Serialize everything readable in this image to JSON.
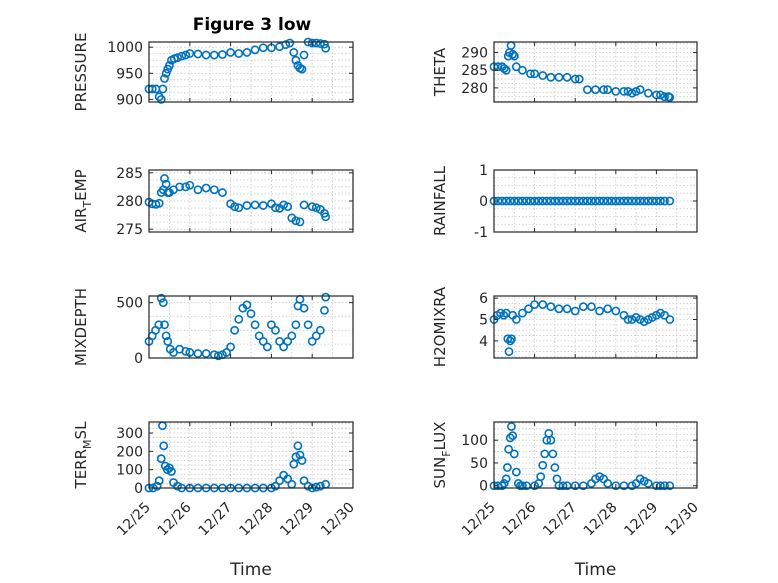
{
  "figure_title": "Figure 3 low",
  "chart_data": [
    {
      "type": "scatter",
      "ylabel": "PRESSURE",
      "xlabel": "",
      "ylim": [
        895,
        1010
      ],
      "yticks": [
        900,
        950,
        1000
      ],
      "xlim": [
        0,
        5
      ],
      "xticks": [
        0,
        1,
        2,
        3,
        4,
        5
      ],
      "xticklabels": [
        "12/25",
        "12/26",
        "12/27",
        "12/28",
        "12/29",
        "12/30"
      ],
      "grid": true,
      "color": "#0072BD",
      "x": [
        0.0,
        0.08,
        0.17,
        0.25,
        0.3,
        0.34,
        0.38,
        0.42,
        0.46,
        0.5,
        0.55,
        0.62,
        0.7,
        0.8,
        0.9,
        1.0,
        1.2,
        1.4,
        1.6,
        1.8,
        2.0,
        2.2,
        2.4,
        2.6,
        2.8,
        3.0,
        3.2,
        3.35,
        3.45,
        3.55,
        3.6,
        3.65,
        3.7,
        3.75,
        3.8,
        3.9,
        4.0,
        4.1,
        4.2,
        4.3,
        4.33
      ],
      "y": [
        920,
        920,
        920,
        905,
        900,
        920,
        940,
        950,
        958,
        965,
        975,
        978,
        980,
        983,
        985,
        988,
        987,
        985,
        985,
        986,
        990,
        988,
        990,
        995,
        999,
        999,
        1001,
        1005,
        1008,
        990,
        975,
        965,
        960,
        958,
        985,
        1010,
        1008,
        1008,
        1007,
        1006,
        998
      ]
    },
    {
      "type": "scatter",
      "ylabel": "THETA",
      "xlabel": "",
      "ylim": [
        276,
        293
      ],
      "yticks": [
        280,
        285,
        290
      ],
      "xlim": [
        0,
        5
      ],
      "xticks": [
        0,
        1,
        2,
        3,
        4,
        5
      ],
      "xticklabels": [
        "12/25",
        "12/26",
        "12/27",
        "12/28",
        "12/29",
        "12/30"
      ],
      "grid": true,
      "color": "#0072BD",
      "x": [
        0.0,
        0.1,
        0.2,
        0.25,
        0.3,
        0.35,
        0.38,
        0.42,
        0.46,
        0.5,
        0.55,
        0.7,
        0.9,
        1.0,
        1.2,
        1.4,
        1.6,
        1.8,
        2.0,
        2.1,
        2.3,
        2.5,
        2.7,
        2.8,
        3.0,
        3.2,
        3.3,
        3.4,
        3.5,
        3.6,
        3.8,
        4.0,
        4.1,
        4.2,
        4.3,
        4.33
      ],
      "y": [
        286,
        286,
        286,
        285.5,
        285,
        289,
        290,
        292,
        289.5,
        289,
        286,
        285,
        284,
        284,
        283.5,
        283,
        283,
        283,
        282.5,
        282.5,
        279.5,
        279.5,
        279.5,
        279.5,
        279,
        279,
        279,
        278.5,
        279,
        279.5,
        278.5,
        278,
        278,
        277.5,
        277.5,
        277.3
      ]
    },
    {
      "type": "scatter",
      "ylabel": "AIR_TEMP",
      "xlabel": "",
      "ylim": [
        274.5,
        285.5
      ],
      "yticks": [
        275,
        280,
        285
      ],
      "xlim": [
        0,
        5
      ],
      "xticks": [
        0,
        1,
        2,
        3,
        4,
        5
      ],
      "xticklabels": [
        "12/25",
        "12/26",
        "12/27",
        "12/28",
        "12/29",
        "12/30"
      ],
      "grid": true,
      "color": "#0072BD",
      "x": [
        0.0,
        0.08,
        0.17,
        0.25,
        0.3,
        0.35,
        0.38,
        0.42,
        0.46,
        0.5,
        0.6,
        0.75,
        0.9,
        1.0,
        1.2,
        1.4,
        1.6,
        1.8,
        2.0,
        2.1,
        2.2,
        2.4,
        2.6,
        2.8,
        3.0,
        3.1,
        3.2,
        3.3,
        3.4,
        3.5,
        3.6,
        3.7,
        3.8,
        4.0,
        4.1,
        4.2,
        4.3,
        4.33
      ],
      "y": [
        279.8,
        279.5,
        279.4,
        279.6,
        281.5,
        282,
        284,
        283,
        281.5,
        281.5,
        282,
        282.5,
        282.5,
        282.8,
        282,
        282.3,
        282,
        281.5,
        279.5,
        279,
        278.8,
        279.2,
        279.3,
        279.2,
        279.5,
        278.8,
        278.7,
        279.3,
        279,
        277,
        276.5,
        276.3,
        279.3,
        279,
        278.8,
        278.5,
        277.8,
        277.2
      ]
    },
    {
      "type": "scatter",
      "ylabel": "RAINFALL",
      "xlabel": "",
      "ylim": [
        -1,
        1
      ],
      "yticks": [
        -1,
        0,
        1
      ],
      "xlim": [
        0,
        5
      ],
      "xticks": [
        0,
        1,
        2,
        3,
        4,
        5
      ],
      "xticklabels": [
        "12/25",
        "12/26",
        "12/27",
        "12/28",
        "12/29",
        "12/30"
      ],
      "grid": true,
      "color": "#0072BD",
      "x": [
        0.0,
        0.1,
        0.2,
        0.3,
        0.4,
        0.5,
        0.6,
        0.7,
        0.8,
        0.9,
        1.0,
        1.1,
        1.2,
        1.3,
        1.4,
        1.5,
        1.6,
        1.7,
        1.8,
        1.9,
        2.0,
        2.1,
        2.2,
        2.3,
        2.4,
        2.5,
        2.6,
        2.7,
        2.8,
        2.9,
        3.0,
        3.1,
        3.2,
        3.3,
        3.4,
        3.5,
        3.6,
        3.7,
        3.8,
        3.9,
        4.0,
        4.1,
        4.2,
        4.33
      ],
      "y": [
        0,
        0,
        0,
        0,
        0,
        0,
        0,
        0,
        0,
        0,
        0,
        0,
        0,
        0,
        0,
        0,
        0,
        0,
        0,
        0,
        0,
        0,
        0,
        0,
        0,
        0,
        0,
        0,
        0,
        0,
        0,
        0,
        0,
        0,
        0,
        0,
        0,
        0,
        0,
        0,
        0,
        0,
        0,
        0
      ]
    },
    {
      "type": "scatter",
      "ylabel": "MIXDEPTH",
      "xlabel": "",
      "ylim": [
        0,
        560
      ],
      "yticks": [
        0,
        500
      ],
      "xlim": [
        0,
        5
      ],
      "xticks": [
        0,
        1,
        2,
        3,
        4,
        5
      ],
      "xticklabels": [
        "12/25",
        "12/26",
        "12/27",
        "12/28",
        "12/29",
        "12/30"
      ],
      "grid": true,
      "color": "#0072BD",
      "x": [
        0.0,
        0.08,
        0.16,
        0.24,
        0.3,
        0.35,
        0.38,
        0.42,
        0.46,
        0.52,
        0.6,
        0.75,
        0.9,
        1.0,
        1.2,
        1.4,
        1.6,
        1.7,
        1.8,
        1.9,
        2.0,
        2.1,
        2.2,
        2.3,
        2.4,
        2.5,
        2.6,
        2.7,
        2.8,
        2.9,
        3.0,
        3.1,
        3.2,
        3.3,
        3.4,
        3.5,
        3.6,
        3.65,
        3.7,
        3.8,
        3.9,
        4.0,
        4.1,
        4.2,
        4.3,
        4.33
      ],
      "y": [
        150,
        200,
        250,
        300,
        540,
        500,
        300,
        200,
        150,
        80,
        50,
        80,
        60,
        50,
        40,
        40,
        30,
        20,
        30,
        50,
        100,
        250,
        350,
        450,
        480,
        400,
        300,
        200,
        150,
        100,
        300,
        250,
        150,
        100,
        150,
        200,
        300,
        470,
        530,
        450,
        300,
        150,
        200,
        250,
        430,
        550
      ]
    },
    {
      "type": "scatter",
      "ylabel": "H2OMIXRA",
      "xlabel": "",
      "ylim": [
        3.2,
        6.1
      ],
      "yticks": [
        4,
        5,
        6
      ],
      "xlim": [
        0,
        5
      ],
      "xticks": [
        0,
        1,
        2,
        3,
        4,
        5
      ],
      "xticklabels": [
        "12/25",
        "12/26",
        "12/27",
        "12/28",
        "12/29",
        "12/30"
      ],
      "grid": true,
      "color": "#0072BD",
      "x": [
        0.0,
        0.08,
        0.16,
        0.24,
        0.3,
        0.34,
        0.37,
        0.4,
        0.43,
        0.46,
        0.55,
        0.7,
        0.85,
        1.0,
        1.2,
        1.4,
        1.6,
        1.8,
        2.0,
        2.2,
        2.4,
        2.6,
        2.8,
        3.0,
        3.2,
        3.3,
        3.4,
        3.5,
        3.6,
        3.7,
        3.8,
        3.9,
        4.0,
        4.1,
        4.2,
        4.33
      ],
      "y": [
        5.0,
        5.2,
        5.3,
        5.2,
        5.3,
        4.1,
        3.5,
        4.0,
        4.1,
        5.2,
        5.0,
        5.3,
        5.5,
        5.7,
        5.7,
        5.6,
        5.5,
        5.5,
        5.4,
        5.6,
        5.6,
        5.4,
        5.5,
        5.4,
        5.2,
        5.0,
        5.0,
        5.1,
        5.0,
        4.9,
        5.0,
        5.1,
        5.2,
        5.3,
        5.2,
        5.0
      ]
    },
    {
      "type": "scatter",
      "ylabel": "TERR_MSL",
      "xlabel": "Time",
      "ylim": [
        0,
        360
      ],
      "yticks": [
        0,
        100,
        200,
        300
      ],
      "ytickextra": [
        50,
        150,
        250
      ],
      "xlim": [
        0,
        5
      ],
      "xticks": [
        0,
        1,
        2,
        3,
        4,
        5
      ],
      "xticklabels": [
        "12/25",
        "12/26",
        "12/27",
        "12/28",
        "12/29",
        "12/30"
      ],
      "grid": true,
      "color": "#0072BD",
      "x": [
        0.0,
        0.1,
        0.2,
        0.25,
        0.3,
        0.33,
        0.36,
        0.4,
        0.45,
        0.5,
        0.55,
        0.6,
        0.7,
        0.8,
        1.0,
        1.2,
        1.4,
        1.6,
        1.8,
        2.0,
        2.2,
        2.4,
        2.6,
        2.8,
        3.0,
        3.1,
        3.2,
        3.3,
        3.4,
        3.5,
        3.55,
        3.6,
        3.65,
        3.7,
        3.75,
        3.8,
        3.9,
        4.0,
        4.1,
        4.2,
        4.33
      ],
      "y": [
        0,
        0,
        10,
        40,
        160,
        340,
        230,
        120,
        100,
        110,
        90,
        30,
        10,
        0,
        0,
        0,
        0,
        0,
        0,
        0,
        0,
        0,
        0,
        0,
        0,
        10,
        40,
        70,
        50,
        20,
        130,
        170,
        230,
        180,
        150,
        40,
        10,
        0,
        5,
        10,
        20
      ]
    },
    {
      "type": "scatter",
      "ylabel": "SUN_FLUX",
      "xlabel": "Time",
      "ylim": [
        -5,
        140
      ],
      "yticks": [
        0,
        50,
        100
      ],
      "xlim": [
        0,
        5
      ],
      "xticks": [
        0,
        1,
        2,
        3,
        4,
        5
      ],
      "xticklabels": [
        "12/25",
        "12/26",
        "12/27",
        "12/28",
        "12/29",
        "12/30"
      ],
      "grid": true,
      "color": "#0072BD",
      "x": [
        0.0,
        0.1,
        0.2,
        0.25,
        0.3,
        0.33,
        0.36,
        0.4,
        0.43,
        0.46,
        0.5,
        0.55,
        0.6,
        0.65,
        0.7,
        0.8,
        1.0,
        1.1,
        1.15,
        1.2,
        1.25,
        1.3,
        1.35,
        1.4,
        1.45,
        1.5,
        1.55,
        1.6,
        1.7,
        1.8,
        2.0,
        2.2,
        2.4,
        2.5,
        2.6,
        2.7,
        2.8,
        3.0,
        3.2,
        3.4,
        3.5,
        3.6,
        3.7,
        3.8,
        4.0,
        4.1,
        4.2,
        4.33
      ],
      "y": [
        0,
        0,
        0,
        5,
        15,
        40,
        80,
        105,
        130,
        110,
        70,
        30,
        5,
        0,
        0,
        0,
        0,
        5,
        20,
        45,
        70,
        100,
        115,
        100,
        70,
        40,
        15,
        0,
        0,
        0,
        0,
        0,
        5,
        15,
        20,
        15,
        5,
        0,
        0,
        0,
        5,
        15,
        10,
        5,
        0,
        0,
        0,
        0
      ]
    }
  ]
}
